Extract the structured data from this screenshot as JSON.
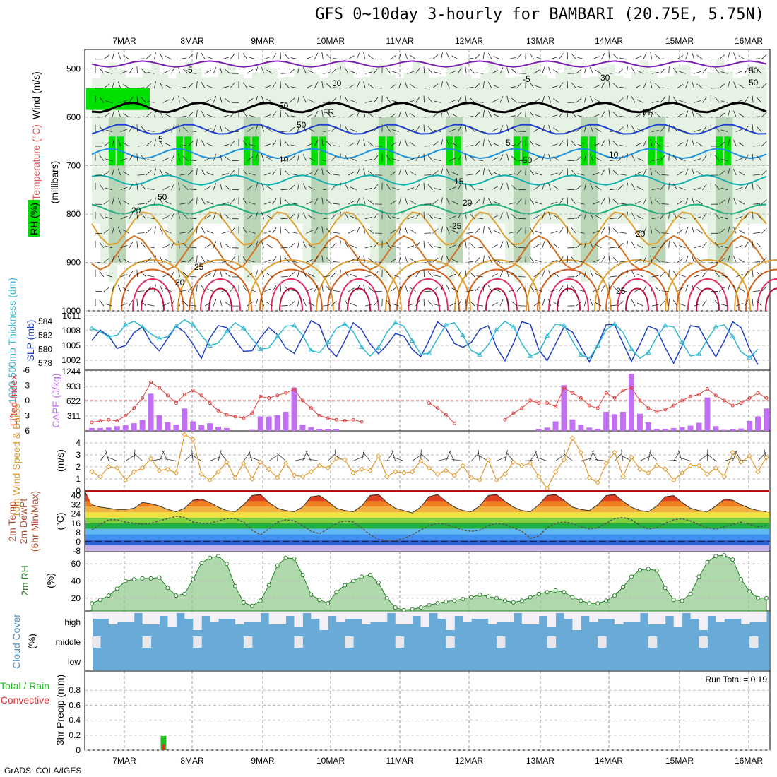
{
  "title": "GFS 0~10day 3-hourly for BAMBARI (20.75E, 5.75N)",
  "footer": "GrADS: COLA/IGES",
  "dates": [
    "7MAR",
    "8MAR",
    "9MAR",
    "10MAR",
    "11MAR",
    "12MAR",
    "13MAR",
    "14MAR",
    "15MAR",
    "16MAR"
  ],
  "colors": {
    "rh_green": "#00e000",
    "freeze": "#000000",
    "slp": "#2040c0",
    "thickness": "#30b8d0",
    "li": "#e04040",
    "cape": "#c070f0",
    "wind": "#e09a30",
    "rh2m": "#208020",
    "cloud": "#6aaad6",
    "rain_total": "#20c020",
    "rain_conv": "#e03030"
  },
  "chart_data": [
    {
      "type": "heatmap",
      "name": "upper-air",
      "ylabel_lines": [
        "Wind (m/s)",
        "Temperature (°C)",
        "RH (%)",
        "(millibars)"
      ],
      "y_ticks": [
        500,
        600,
        700,
        800,
        900,
        1000
      ],
      "ylim": [
        460,
        1000
      ],
      "isotherms": [
        {
          "label": "-5",
          "p": 490,
          "color": "#7a1fb0"
        },
        {
          "label": "FR",
          "p": 580,
          "color": "#000000"
        },
        {
          "label": "5",
          "p": 625,
          "color": "#1e40d0"
        },
        {
          "label": "10",
          "p": 675,
          "color": "#1e90e0"
        },
        {
          "label": "15",
          "p": 730,
          "color": "#10b0b0"
        },
        {
          "label": "20",
          "p": 790,
          "color": "#20b080"
        },
        {
          "label": "25",
          "p": 830,
          "color": "#e0a030"
        },
        {
          "label": "30",
          "p": 880,
          "color": "#d07020"
        }
      ],
      "contour_labels": [
        "-5",
        "-5",
        "FR",
        "FR",
        "5",
        "5",
        "10",
        "10",
        "15",
        "20",
        "20",
        "-25",
        "20",
        "25",
        "30",
        "25",
        "50",
        "50",
        "50",
        "30",
        "30",
        "50",
        "50",
        "50"
      ]
    },
    {
      "type": "line",
      "name": "slp-thickness",
      "ylabel_left": "1000-500mb Thickness (dm)",
      "ylabel_right": "SLP (mb)",
      "y_ticks_left": [
        578,
        580,
        582,
        584
      ],
      "y_ticks_right": [
        1002,
        1005,
        1008,
        1011
      ],
      "ylim_slp": [
        1000,
        1012
      ],
      "series": [
        {
          "values": [
            1006.0,
            1008.1,
            1006.9,
            1004.4,
            1005.0,
            1007.6,
            1008.7,
            1005.7,
            1003.9,
            1006.4,
            1008.9,
            1007.7,
            1005.2,
            1002.4,
            1006.5,
            1009.0,
            1008.6,
            1006.0,
            1003.8,
            1003.9,
            1006.6,
            1008.6,
            1007.2,
            1004.5,
            1003.4,
            1006.7,
            1010.0,
            1009.1,
            1004.6,
            1002.7,
            1005.9,
            1009.6,
            1008.2,
            1005.3,
            1003.3,
            1005.1,
            1007.4,
            1006.9,
            1004.2,
            1002.7,
            1006.0,
            1009.8,
            1008.4,
            1005.4,
            1004.6,
            1005.6,
            1008.2,
            1009.0,
            1004.6,
            1001.9,
            1005.4,
            1009.8,
            1009.3,
            1004.2,
            1001.9,
            1005.3,
            1008.7,
            1007.7,
            1004.6,
            1001.7,
            1005.1,
            1009.2,
            1009.2,
            1005.4,
            1001.8,
            1005.2,
            1008.9,
            1008.2,
            1004.5,
            1001.4,
            1004.9,
            1009.0,
            1008.7,
            1005.5,
            1002.7,
            1005.9,
            1009.8,
            1008.6,
            1004.3,
            1001.1
          ]
        },
        {
          "values": [
            583.0,
            582.5,
            581.8,
            582.0,
            583.5,
            584.0,
            583.2,
            582.2,
            581.5,
            581.8,
            583.3,
            584.2,
            583.5,
            582.0,
            580.5,
            580.9,
            582.5,
            583.8,
            583.0,
            581.5,
            580.0,
            580.2,
            581.8,
            583.3,
            583.4,
            582.0,
            579.8,
            579.5,
            581.0,
            583.0,
            583.6,
            582.5,
            580.3,
            579.0,
            580.2,
            582.4,
            583.8,
            583.3,
            581.2,
            579.3,
            579.4,
            581.5,
            583.5,
            583.8,
            582.0,
            579.8,
            579.2,
            580.6,
            582.8,
            584.0,
            583.2,
            580.8,
            579.0,
            579.5,
            581.9,
            583.6,
            583.4,
            581.2,
            579.2,
            578.7,
            580.5,
            582.8,
            583.6,
            582.4,
            580.0,
            578.7,
            579.5,
            581.8,
            583.4,
            583.2,
            581.0,
            579.0,
            579.3,
            581.4,
            583.2,
            583.5,
            581.8,
            579.6,
            578.8,
            580.0
          ]
        }
      ]
    },
    {
      "type": "bar",
      "name": "cape-li",
      "ylabel_left": "Lifted Index",
      "ylabel_right": "CAPE (J/kg)",
      "y_ticks_left": [
        "-6",
        "-3",
        "0",
        "3",
        "6"
      ],
      "y_ticks_right": [
        311,
        622,
        933,
        1244
      ],
      "cape_max": 1244,
      "series": [
        {
          "name": "CAPE",
          "values": [
            60,
            60,
            70,
            100,
            120,
            160,
            230,
            780,
            330,
            180,
            130,
            470,
            200,
            120,
            160,
            90,
            60,
            0,
            0,
            20,
            300,
            300,
            330,
            400,
            910,
            130,
            80,
            40,
            30,
            30,
            0,
            0,
            0,
            0,
            0,
            0,
            0,
            0,
            0,
            0,
            0,
            0,
            0,
            0,
            0,
            0,
            0,
            0,
            0,
            0,
            0,
            0,
            0,
            40,
            70,
            200,
            960,
            240,
            130,
            70,
            40,
            400,
            350,
            400,
            1200,
            360,
            180,
            40,
            40,
            60,
            80,
            110,
            170,
            700,
            100,
            20,
            30,
            50,
            210,
            300,
            470
          ]
        },
        {
          "name": "LI",
          "values": [
            4.3,
            4.0,
            3.8,
            4.0,
            3.0,
            1.5,
            -0.5,
            -3.6,
            -2.5,
            -1.0,
            0.5,
            -1.2,
            -2.0,
            -1.0,
            0.5,
            2.0,
            2.8,
            3.2,
            3.5,
            2.5,
            -0.8,
            -0.5,
            -1.0,
            -1.5,
            -2.2,
            0.0,
            1.5,
            3.0,
            3.5,
            3.8,
            4.0,
            3.8,
            4.2,
            null,
            null,
            null,
            null,
            null,
            null,
            null,
            0.5,
            1.5,
            2.8,
            4.5,
            null,
            null,
            null,
            null,
            null,
            3.8,
            2.5,
            1.5,
            0.0,
            0.5,
            0.5,
            1.2,
            -2.5,
            -1.5,
            -0.5,
            1.0,
            1.5,
            -1.5,
            -0.5,
            -2.0,
            -2.5,
            0.0,
            1.5,
            2.2,
            1.8,
            1.0,
            0.0,
            -0.8,
            -1.2,
            -2.3,
            -1.0,
            0.0,
            1.0,
            0.5,
            -0.5,
            -1.5,
            -0.5
          ]
        }
      ]
    },
    {
      "type": "line",
      "name": "wind10m",
      "ylabel": "10m Wind Speed & Barbs",
      "yunit": "(m/s)",
      "y_ticks": [
        0,
        1,
        2,
        3,
        4
      ],
      "ylim": [
        0,
        5
      ],
      "values": [
        1.6,
        1.2,
        2.0,
        1.9,
        0.9,
        1.6,
        1.9,
        2.7,
        1.7,
        1.8,
        1.5,
        4.7,
        4.3,
        1.4,
        0.9,
        1.6,
        2.4,
        1.1,
        2.3,
        1.0,
        2.4,
        1.8,
        1.1,
        2.3,
        1.3,
        1.2,
        1.6,
        2.1,
        1.9,
        2.7,
        2.6,
        1.5,
        1.8,
        1.7,
        2.9,
        1.2,
        1.6,
        1.5,
        1.6,
        2.5,
        1.9,
        1.4,
        1.7,
        1.3,
        2.1,
        1.1,
        0.9,
        2.6,
        0.9,
        1.4,
        2.4,
        2.1,
        2.3,
        1.2,
        0.2,
        1.6,
        2.6,
        4.4,
        3.2,
        1.1,
        0.7,
        2.3,
        3.2,
        1.2,
        2.8,
        1.8,
        1.5,
        2.1,
        1.8,
        0.9,
        1.5,
        2.1,
        2.1,
        1.4,
        1.9,
        1.2,
        3.2,
        2.4,
        2.9,
        1.6,
        2.8
      ]
    },
    {
      "type": "area",
      "name": "temp2m",
      "ylabel_lines": [
        "2m Temp",
        "2m DewPt",
        "(6hr Min/Max)"
      ],
      "yunit": "(°C)",
      "y_ticks": [
        -8,
        0,
        8,
        16,
        24,
        32,
        40
      ],
      "ylim": [
        -8,
        44
      ],
      "series": [
        {
          "name": "temp",
          "values": [
            32,
            30,
            29,
            28,
            28,
            29,
            34,
            33,
            31,
            28,
            26,
            29,
            36,
            37,
            34,
            30,
            27,
            26,
            32,
            40,
            41,
            34,
            29,
            27,
            26,
            30,
            39,
            40,
            35,
            29,
            27,
            26,
            31,
            40,
            41,
            34,
            29,
            27,
            25,
            30,
            39,
            41,
            35,
            30,
            27,
            26,
            31,
            40,
            41,
            35,
            30,
            27,
            26,
            32,
            40,
            41,
            36,
            30,
            28,
            27,
            32,
            40,
            41,
            35,
            30,
            27,
            26,
            31,
            39,
            40,
            34,
            29,
            27,
            26,
            31,
            37,
            36,
            32,
            29,
            27,
            26
          ]
        },
        {
          "name": "dewpt",
          "values": [
            10,
            15,
            19,
            19,
            17,
            16,
            15,
            16,
            18,
            20,
            22,
            21,
            17,
            16,
            16,
            18,
            20,
            20,
            17,
            10,
            6,
            11,
            17,
            19,
            18,
            14,
            9,
            7,
            11,
            16,
            18,
            17,
            12,
            6,
            2,
            1,
            1,
            3,
            6,
            10,
            14,
            16,
            15,
            13,
            10,
            9,
            10,
            14,
            16,
            15,
            12,
            9,
            3,
            5,
            12,
            16,
            17,
            16,
            13,
            11,
            12,
            16,
            20,
            21,
            19,
            14,
            11,
            12,
            16,
            19,
            20,
            18,
            15,
            12,
            11,
            13,
            15,
            17,
            15,
            13,
            14
          ]
        }
      ]
    },
    {
      "type": "area",
      "name": "rh2m",
      "ylabel": "2m RH",
      "yunit": "(%)",
      "y_ticks": [
        20,
        40,
        60
      ],
      "ylim": [
        5,
        75
      ],
      "values": [
        14,
        18,
        23,
        31,
        40,
        42,
        43,
        43,
        44,
        32,
        23,
        25,
        42,
        61,
        67,
        69,
        60,
        34,
        15,
        11,
        17,
        35,
        58,
        67,
        66,
        47,
        24,
        18,
        14,
        27,
        35,
        40,
        45,
        47,
        38,
        20,
        9,
        6,
        7,
        9,
        12,
        14,
        16,
        17,
        19,
        21,
        24,
        22,
        20,
        17,
        15,
        17,
        21,
        25,
        27,
        29,
        27,
        21,
        17,
        14,
        14,
        17,
        23,
        33,
        45,
        53,
        54,
        52,
        32,
        18,
        17,
        25,
        45,
        62,
        69,
        70,
        65,
        42,
        28,
        20,
        20
      ]
    },
    {
      "type": "bar",
      "name": "cloud-cover",
      "ylabel": "Cloud Cover",
      "yunit": "(%)",
      "layers": [
        "high",
        "middle",
        "low"
      ]
    },
    {
      "type": "bar",
      "name": "precip",
      "ylabel_lines": [
        "Total / Rain",
        "Convective"
      ],
      "ylabel": "3hr Precip (mm)",
      "y_ticks": [
        "0",
        "0.2",
        "0.4",
        "0.6",
        "0.8"
      ],
      "ylim": [
        0,
        1.0
      ],
      "annotation": "Run Total = 0.19",
      "series": [
        {
          "name": "Total",
          "index": 8,
          "value": 0.19
        },
        {
          "name": "Convective",
          "index": 8,
          "value": 0.08
        }
      ]
    }
  ]
}
